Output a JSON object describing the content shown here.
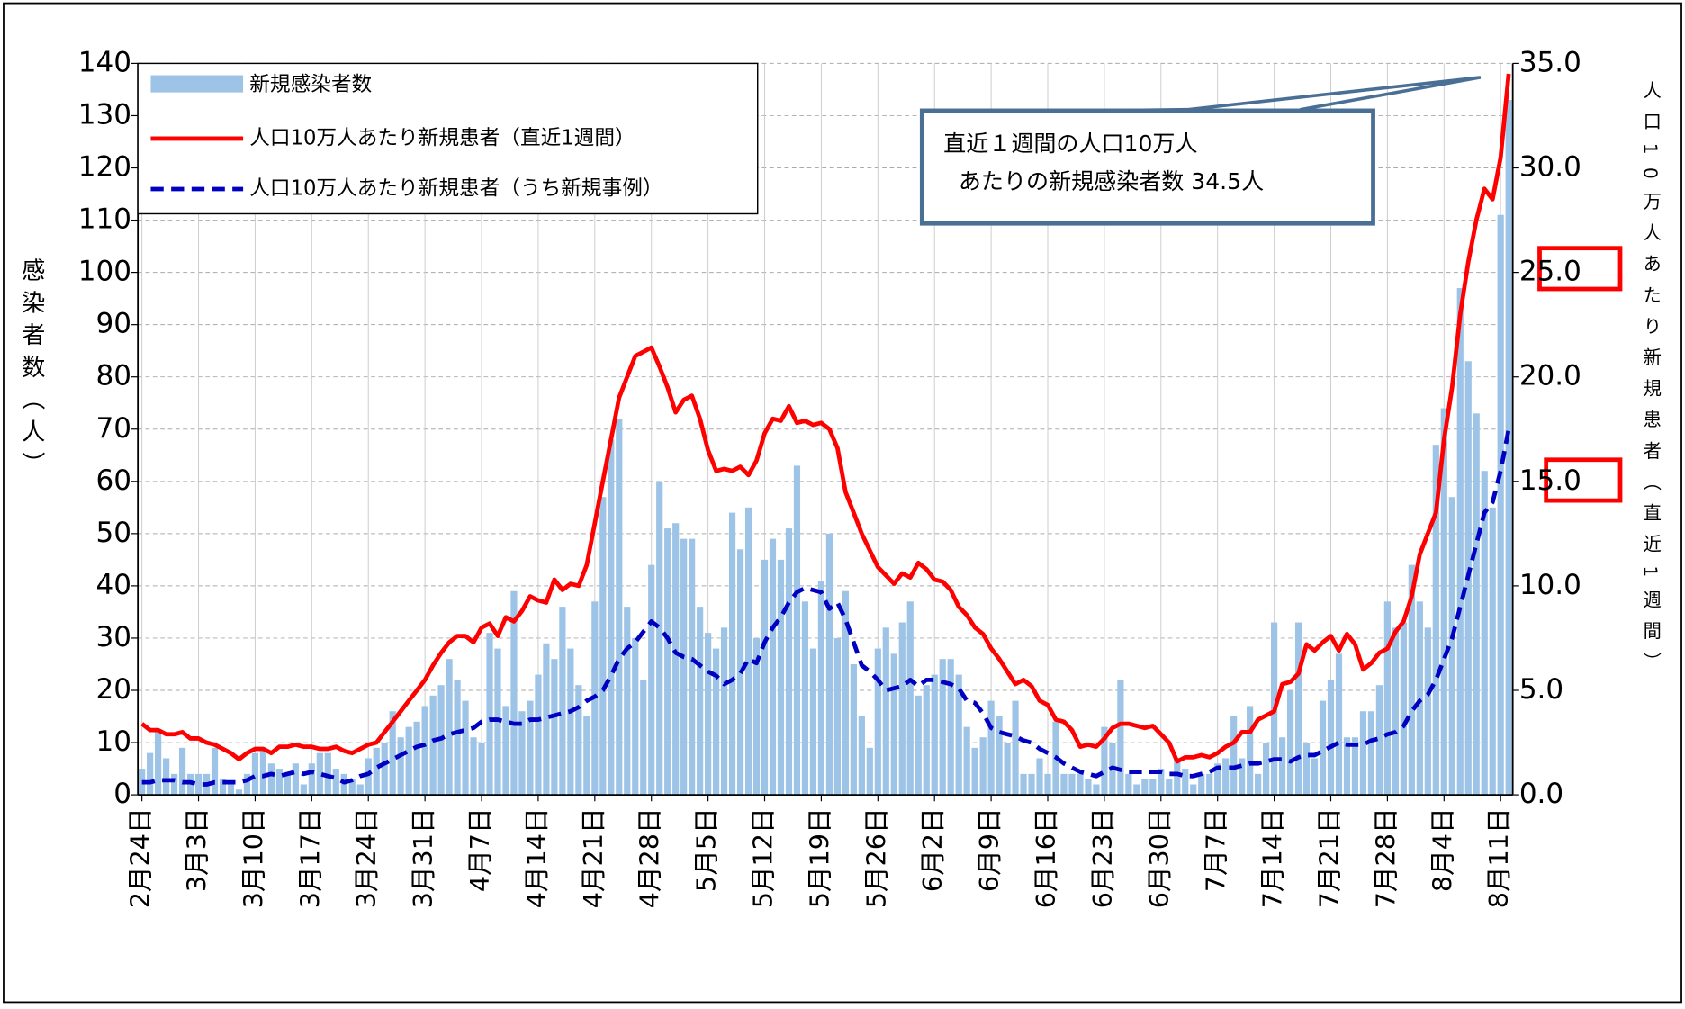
{
  "chart_data": {
    "type": "bar",
    "y_label": "感染者数（人）",
    "y2_label": "人口10万人あたり新規患者（直近1週間）",
    "annotations": [
      "直近１週間の人口10万人",
      "あたりの新規感染者数 34.5人"
    ],
    "categories": [
      "2月24日",
      null,
      null,
      null,
      null,
      null,
      null,
      "3月3日",
      null,
      null,
      null,
      null,
      null,
      null,
      "3月10日",
      null,
      null,
      null,
      null,
      null,
      null,
      "3月17日",
      null,
      null,
      null,
      null,
      null,
      null,
      "3月24日",
      null,
      null,
      null,
      null,
      null,
      null,
      "3月31日",
      null,
      null,
      null,
      null,
      null,
      null,
      "4月7日",
      null,
      null,
      null,
      null,
      null,
      null,
      "4月14日",
      null,
      null,
      null,
      null,
      null,
      null,
      "4月21日",
      null,
      null,
      null,
      null,
      null,
      null,
      "4月28日",
      null,
      null,
      null,
      null,
      null,
      null,
      "5月5日",
      null,
      null,
      null,
      null,
      null,
      null,
      "5月12日",
      null,
      null,
      null,
      null,
      null,
      null,
      "5月19日",
      null,
      null,
      null,
      null,
      null,
      null,
      "5月26日",
      null,
      null,
      null,
      null,
      null,
      null,
      "6月2日",
      null,
      null,
      null,
      null,
      null,
      null,
      "6月9日",
      null,
      null,
      null,
      null,
      null,
      null,
      "6月16日",
      null,
      null,
      null,
      null,
      null,
      null,
      "6月23日",
      null,
      null,
      null,
      null,
      null,
      null,
      "6月30日",
      null,
      null,
      null,
      null,
      null,
      null,
      "7月7日",
      null,
      null,
      null,
      null,
      null,
      null,
      "7月14日",
      null,
      null,
      null,
      null,
      null,
      null,
      "7月21日",
      null,
      null,
      null,
      null,
      null,
      null,
      "7月28日",
      null,
      null,
      null,
      null,
      null,
      null,
      "8月4日",
      null,
      null,
      null,
      null,
      null,
      null,
      "8月11日",
      null
    ],
    "series": [
      {
        "name": "新規感染者数",
        "type": "bar",
        "color": "#9dc3e6",
        "axis": "y",
        "values": [
          5,
          8,
          12,
          7,
          4,
          9,
          4,
          4,
          4,
          9,
          3,
          2,
          1,
          4,
          8,
          9,
          6,
          5,
          4,
          6,
          2,
          6,
          8,
          8,
          5,
          4,
          3,
          2,
          7,
          9,
          10,
          16,
          11,
          13,
          14,
          17,
          19,
          21,
          26,
          22,
          18,
          11,
          10,
          31,
          28,
          17,
          39,
          16,
          18,
          23,
          29,
          26,
          36,
          28,
          21,
          15,
          37,
          57,
          68,
          72,
          36,
          30,
          22,
          44,
          60,
          51,
          52,
          49,
          49,
          36,
          31,
          28,
          32,
          54,
          47,
          55,
          30,
          45,
          49,
          45,
          51,
          63,
          37,
          28,
          41,
          50,
          30,
          39,
          25,
          15,
          9,
          28,
          32,
          27,
          33,
          37,
          19,
          21,
          23,
          26,
          26,
          23,
          13,
          9,
          11,
          18,
          15,
          10,
          18,
          4,
          4,
          7,
          4,
          14,
          4,
          4,
          4,
          3,
          2,
          13,
          10,
          22,
          4,
          2,
          3,
          3,
          5,
          3,
          7,
          5,
          2,
          4,
          4,
          6,
          7,
          15,
          7,
          17,
          4,
          10,
          33,
          11,
          20,
          33,
          10,
          7,
          18,
          22,
          27,
          11,
          11,
          16,
          16,
          21,
          37,
          32,
          33,
          44,
          37,
          32,
          67,
          74,
          57,
          97,
          83,
          73,
          62,
          55,
          111,
          133
        ]
      },
      {
        "name": "人口10万人あたり新規患者（直近1週間）",
        "type": "line",
        "color": "#ff0000",
        "axis": "y2",
        "dashed": false,
        "values": [
          3.4,
          3.1,
          3.1,
          2.9,
          2.9,
          3.0,
          2.7,
          2.7,
          2.5,
          2.4,
          2.2,
          2.0,
          1.7,
          2.0,
          2.2,
          2.2,
          2.0,
          2.3,
          2.3,
          2.4,
          2.3,
          2.3,
          2.2,
          2.2,
          2.3,
          2.1,
          2.0,
          2.2,
          2.4,
          2.5,
          3.0,
          3.5,
          4.0,
          4.5,
          5.0,
          5.5,
          6.2,
          6.8,
          7.3,
          7.6,
          7.6,
          7.3,
          8.0,
          8.2,
          7.6,
          8.5,
          8.3,
          8.8,
          9.5,
          9.3,
          9.2,
          10.3,
          9.8,
          10.1,
          10.0,
          11.0,
          13.0,
          15.0,
          17.0,
          19.0,
          20.0,
          21.0,
          21.2,
          21.4,
          20.5,
          19.5,
          18.3,
          18.9,
          19.1,
          18.0,
          16.5,
          15.5,
          15.6,
          15.5,
          15.7,
          15.3,
          16.0,
          17.3,
          18.0,
          17.9,
          18.6,
          17.8,
          17.9,
          17.7,
          17.8,
          17.5,
          16.6,
          14.5,
          13.5,
          12.5,
          11.7,
          10.9,
          10.5,
          10.1,
          10.6,
          10.4,
          11.1,
          10.8,
          10.3,
          10.2,
          9.8,
          9.0,
          8.6,
          8.0,
          7.7,
          7.0,
          6.5,
          5.9,
          5.3,
          5.5,
          5.2,
          4.5,
          4.3,
          3.6,
          3.5,
          3.1,
          2.3,
          2.4,
          2.3,
          2.7,
          3.2,
          3.4,
          3.4,
          3.3,
          3.2,
          3.3,
          2.9,
          2.5,
          1.6,
          1.8,
          1.8,
          1.9,
          1.8,
          2.0,
          2.3,
          2.5,
          3.0,
          3.0,
          3.6,
          3.8,
          4.0,
          5.3,
          5.4,
          5.8,
          7.2,
          6.9,
          7.3,
          7.6,
          6.9,
          7.7,
          7.2,
          6.0,
          6.3,
          6.8,
          7.0,
          7.8,
          8.3,
          9.5,
          11.5,
          12.5,
          13.5,
          17.0,
          19.5,
          23.0,
          25.5,
          27.5,
          29.0,
          28.5,
          30.5,
          34.5
        ]
      },
      {
        "name": "人口10万人あたり新規患者（うち新規事例）",
        "type": "line",
        "color": "#0000c0",
        "axis": "y2",
        "dashed": true,
        "values": [
          0.6,
          0.6,
          0.7,
          0.7,
          0.7,
          0.6,
          0.6,
          0.5,
          0.5,
          0.6,
          0.6,
          0.6,
          0.6,
          0.7,
          0.9,
          0.9,
          1.0,
          0.9,
          1.0,
          1.1,
          1.0,
          1.1,
          1.0,
          0.9,
          0.8,
          0.6,
          0.7,
          0.9,
          1.0,
          1.3,
          1.5,
          1.7,
          1.9,
          2.1,
          2.3,
          2.4,
          2.6,
          2.7,
          2.9,
          3.0,
          3.1,
          3.2,
          3.5,
          3.6,
          3.6,
          3.5,
          3.4,
          3.4,
          3.6,
          3.6,
          3.7,
          3.8,
          3.9,
          4.0,
          4.2,
          4.5,
          4.7,
          5.0,
          5.7,
          6.5,
          7.0,
          7.3,
          7.8,
          8.3,
          8.0,
          7.5,
          6.8,
          6.6,
          6.5,
          6.2,
          5.9,
          5.7,
          5.3,
          5.5,
          5.8,
          6.5,
          6.3,
          7.3,
          8.0,
          8.5,
          9.2,
          9.7,
          9.9,
          9.8,
          9.7,
          8.9,
          9.2,
          8.4,
          7.3,
          6.2,
          5.9,
          5.5,
          5.0,
          5.1,
          5.2,
          5.5,
          5.2,
          5.5,
          5.5,
          5.4,
          5.3,
          5.1,
          4.5,
          4.4,
          3.9,
          3.2,
          3.0,
          2.9,
          2.8,
          2.6,
          2.5,
          2.2,
          2.0,
          1.8,
          1.5,
          1.3,
          1.1,
          1.0,
          0.9,
          1.1,
          1.3,
          1.2,
          1.1,
          1.1,
          1.1,
          1.1,
          1.1,
          1.0,
          1.0,
          0.9,
          0.9,
          1.0,
          1.1,
          1.3,
          1.3,
          1.3,
          1.4,
          1.5,
          1.5,
          1.6,
          1.7,
          1.7,
          1.6,
          1.8,
          1.9,
          1.9,
          2.1,
          2.3,
          2.5,
          2.4,
          2.4,
          2.4,
          2.6,
          2.7,
          2.9,
          3.0,
          3.3,
          4.0,
          4.5,
          4.8,
          5.5,
          6.5,
          7.5,
          9.0,
          10.5,
          12.0,
          13.5,
          14.0,
          15.5,
          17.5
        ]
      }
    ],
    "ylim": [
      0,
      140
    ],
    "yticks": [
      0,
      10,
      20,
      30,
      40,
      50,
      60,
      70,
      80,
      90,
      100,
      110,
      120,
      130,
      140
    ],
    "y2lim": [
      0,
      35
    ],
    "y2ticks": [
      {
        "value": 0,
        "label": "0.0"
      },
      {
        "value": 5,
        "label": "5.0"
      },
      {
        "value": 10,
        "label": "10.0"
      },
      {
        "value": 15,
        "label": "15.0"
      },
      {
        "value": 20,
        "label": "20.0"
      },
      {
        "value": 25,
        "label": "25.0"
      },
      {
        "value": 30,
        "label": "30.0"
      },
      {
        "value": 35,
        "label": "35.0"
      }
    ],
    "grid": true
  }
}
